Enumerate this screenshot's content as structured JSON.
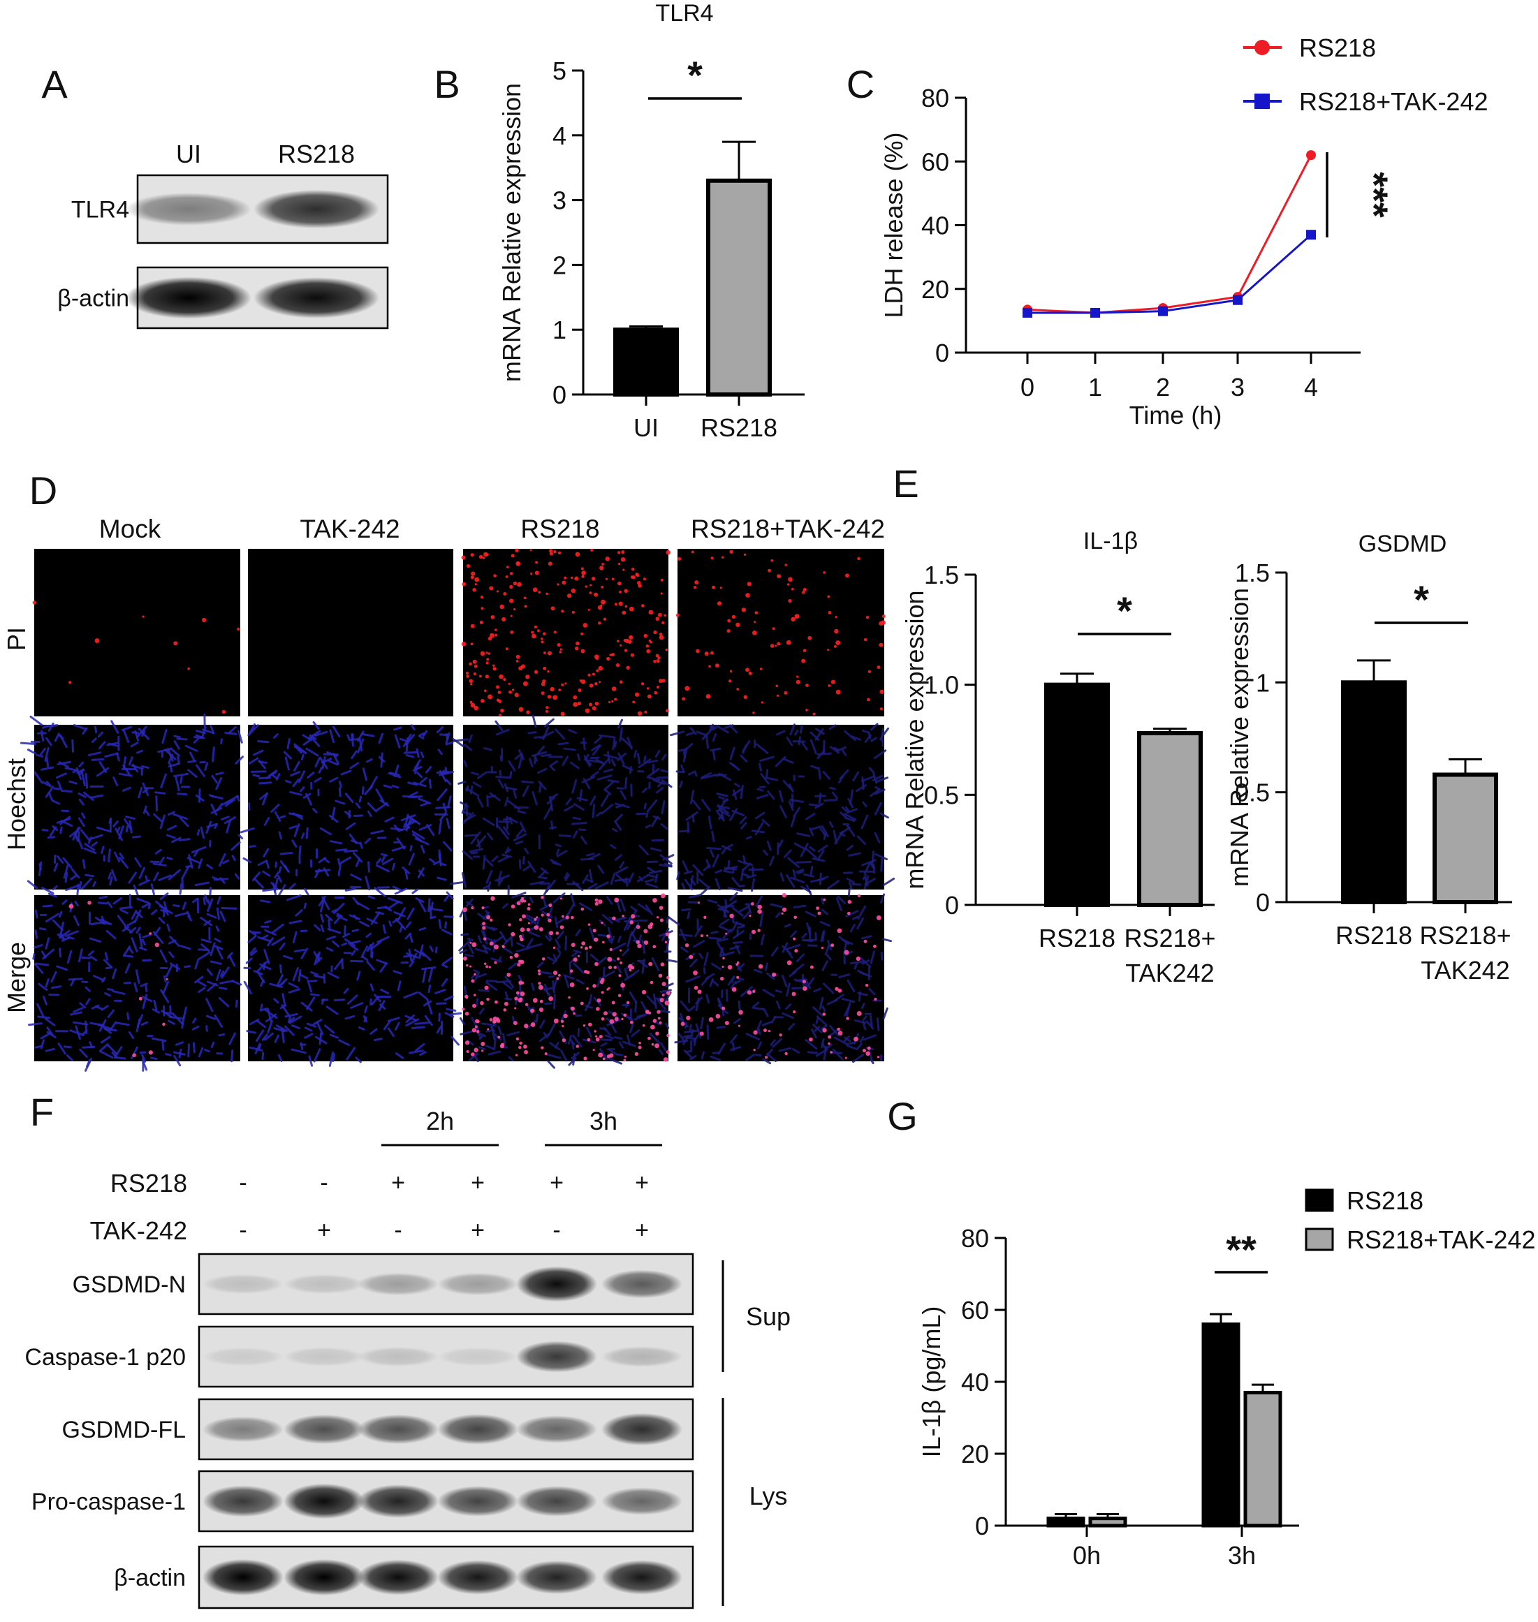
{
  "panels": {
    "A": {
      "letter": "A",
      "lanes": [
        "UI",
        "RS218"
      ],
      "bands": [
        "TLR4",
        "β-actin"
      ],
      "intensity": {
        "TLR4": [
          0.45,
          0.8
        ],
        "β-actin": [
          1.0,
          0.95
        ]
      }
    },
    "D": {
      "letter": "D",
      "columns": [
        "Mock",
        "TAK-242",
        "RS218",
        "RS218+TAK-242"
      ],
      "rows": [
        "PI",
        "Hoechst",
        "Merge"
      ],
      "pi_density": [
        0.02,
        0.0,
        1.0,
        0.35
      ]
    },
    "F": {
      "letter": "F",
      "time_groups": [
        "2h",
        "3h"
      ],
      "treatment_rows": [
        {
          "label": "RS218",
          "signs": [
            "-",
            "-",
            "+",
            "+",
            "+",
            "+"
          ]
        },
        {
          "label": "TAK-242",
          "signs": [
            "-",
            "+",
            "-",
            "+",
            "-",
            "+"
          ]
        }
      ],
      "bands": [
        "GSDMD-N",
        "Caspase-1 p20",
        "GSDMD-FL",
        "Pro-caspase-1",
        "β-actin"
      ],
      "intensity": {
        "GSDMD-N": [
          0.15,
          0.15,
          0.3,
          0.3,
          0.95,
          0.6
        ],
        "Caspase-1 p20": [
          0.1,
          0.12,
          0.15,
          0.1,
          0.75,
          0.2
        ],
        "GSDMD-FL": [
          0.45,
          0.65,
          0.65,
          0.7,
          0.55,
          0.8
        ],
        "Pro-caspase-1": [
          0.75,
          0.95,
          0.85,
          0.7,
          0.7,
          0.55
        ],
        "β-actin": [
          1.0,
          1.0,
          0.95,
          0.9,
          0.85,
          0.9
        ]
      },
      "brackets": [
        "Sup",
        "Lys"
      ]
    }
  },
  "chart_data": [
    {
      "panel": "B",
      "type": "bar",
      "title": "TLR4",
      "categories": [
        "UI",
        "RS218"
      ],
      "values": [
        1.0,
        3.3
      ],
      "errors": [
        0.05,
        0.6
      ],
      "colors": [
        "#000000",
        "#a6a6a6"
      ],
      "ylabel": "mRNA Relative expression",
      "ylim": [
        0,
        5
      ],
      "yticks": [
        "0",
        "1",
        "2",
        "3",
        "4",
        "5"
      ],
      "significance": "*"
    },
    {
      "panel": "C",
      "type": "line",
      "title": "",
      "x": [
        0,
        1,
        2,
        3,
        4
      ],
      "series": [
        {
          "name": "RS218",
          "color": "#ee1c25",
          "values": [
            13.5,
            12.5,
            14,
            17.5,
            62
          ]
        },
        {
          "name": "RS218+TAK-242",
          "color": "#1515c9",
          "values": [
            12.5,
            12.5,
            13,
            16.5,
            37
          ]
        }
      ],
      "xlabel": "Time (h)",
      "ylabel": "LDH release (%)",
      "ylim": [
        0,
        80
      ],
      "yticks": [
        "0",
        "20",
        "40",
        "60",
        "80"
      ],
      "xticks": [
        "0",
        "1",
        "2",
        "3",
        "4"
      ],
      "legend": "top-right",
      "significance": "***"
    },
    {
      "panel": "E",
      "type": "bar",
      "title": "IL-1β",
      "categories": [
        "RS218",
        "RS218+\nTAK242"
      ],
      "values": [
        1.0,
        0.78
      ],
      "errors": [
        0.05,
        0.02
      ],
      "colors": [
        "#000000",
        "#a6a6a6"
      ],
      "ylabel": "mRNA Relative expression",
      "ylim": [
        0,
        1.5
      ],
      "yticks": [
        "0",
        "0.5",
        "1.0",
        "1.5"
      ],
      "significance": "*"
    },
    {
      "panel": "E",
      "type": "bar",
      "title": "GSDMD",
      "categories": [
        "RS218",
        "RS218+\nTAK242"
      ],
      "values": [
        1.0,
        0.58
      ],
      "errors": [
        0.1,
        0.07
      ],
      "colors": [
        "#000000",
        "#a6a6a6"
      ],
      "ylabel": "mRNA Relative expression",
      "ylim": [
        0,
        1.5
      ],
      "yticks": [
        "0",
        "0.5",
        "1",
        "1.5"
      ],
      "significance": "*"
    },
    {
      "panel": "G",
      "type": "bar",
      "title": "",
      "categories": [
        "0h",
        "3h"
      ],
      "series": [
        {
          "name": "RS218",
          "color": "#000000",
          "values": [
            2,
            56
          ],
          "errors": [
            1.2,
            2.8
          ]
        },
        {
          "name": "RS218+TAK-242",
          "color": "#a6a6a6",
          "values": [
            2,
            37
          ],
          "errors": [
            1.2,
            2.2
          ]
        }
      ],
      "ylabel": "IL-1β (pg/mL)",
      "ylim": [
        0,
        80
      ],
      "yticks": [
        "0",
        "20",
        "40",
        "60",
        "80"
      ],
      "legend": "top-right",
      "significance": "**"
    }
  ],
  "letters": {
    "B": "B",
    "C": "C",
    "E": "E",
    "G": "G"
  }
}
